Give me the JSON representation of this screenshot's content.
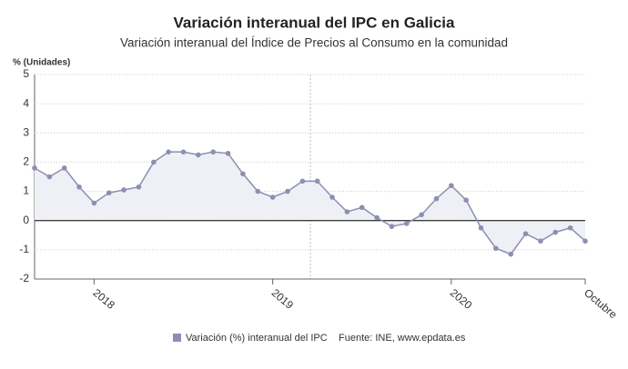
{
  "chart_data": {
    "type": "line",
    "title": "Variación interanual del IPC en Galicia",
    "subtitle": "Variación interanual del Índice de Precios al Consumo en la comunidad",
    "y_label": "% (Unidades)",
    "source": "Fuente: INE, www.epdata.es",
    "categories": [
      null,
      null,
      null,
      null,
      "2018",
      null,
      null,
      null,
      null,
      null,
      null,
      null,
      null,
      null,
      null,
      null,
      "2019",
      null,
      null,
      null,
      null,
      null,
      null,
      null,
      null,
      null,
      null,
      null,
      "2020",
      null,
      null,
      null,
      null,
      null,
      null,
      null,
      null,
      "Octubre"
    ],
    "series": [
      {
        "name": "Variación (%) interanual del IPC",
        "color": "#8c8fb0",
        "values": [
          1.8,
          1.5,
          1.8,
          1.15,
          0.6,
          0.95,
          1.05,
          1.15,
          2.0,
          2.35,
          2.35,
          2.25,
          2.35,
          2.3,
          1.6,
          1.0,
          0.8,
          1.0,
          1.35,
          1.35,
          0.8,
          0.3,
          0.45,
          0.1,
          -0.2,
          -0.1,
          0.2,
          0.75,
          1.2,
          0.7,
          -0.25,
          -0.95,
          -1.15,
          -0.45,
          -0.7,
          -0.4,
          -0.25,
          -0.7
        ]
      }
    ],
    "ylim": [
      -2,
      5
    ],
    "yticks": [
      -2,
      -1,
      0,
      1,
      2,
      3,
      4,
      5
    ],
    "grid": true
  }
}
